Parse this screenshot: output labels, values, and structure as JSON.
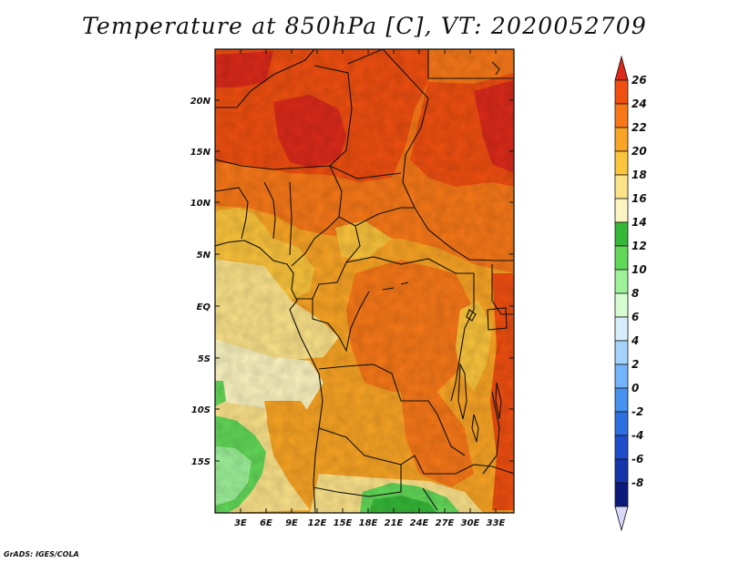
{
  "title": "Temperature at 850hPa [C], VT: 2020052709",
  "credit": "GrADS: IGES/COLA",
  "map": {
    "variable": "Temperature at 850hPa",
    "units": "C",
    "valid_time": "2020052709",
    "region": "Central Africa",
    "lon_ticks": [
      "3E",
      "6E",
      "9E",
      "12E",
      "15E",
      "18E",
      "21E",
      "24E",
      "27E",
      "30E",
      "33E"
    ],
    "lat_ticks": [
      "20N",
      "15N",
      "10N",
      "5N",
      "EQ",
      "5S",
      "10S",
      "15S"
    ],
    "lon_range": [
      0,
      35
    ],
    "lat_range": [
      -20,
      25
    ]
  },
  "colorbar": {
    "labels": [
      "26",
      "24",
      "22",
      "20",
      "18",
      "16",
      "14",
      "12",
      "10",
      "8",
      "6",
      "4",
      "2",
      "0",
      "-2",
      "-4",
      "-6",
      "-8"
    ],
    "colors": [
      "#dc2a1a",
      "#f04f10",
      "#f87818",
      "#f9a424",
      "#fbc43c",
      "#fce38a",
      "#fcf4c0",
      "#36b838",
      "#62d858",
      "#9ef29a",
      "#d6fcd2",
      "#d6eefc",
      "#a4d2fc",
      "#74b4fc",
      "#4592f0",
      "#2d6ee0",
      "#1e4ecc",
      "#1535ad",
      "#0c1a7e",
      "#d8d8f8"
    ]
  }
}
